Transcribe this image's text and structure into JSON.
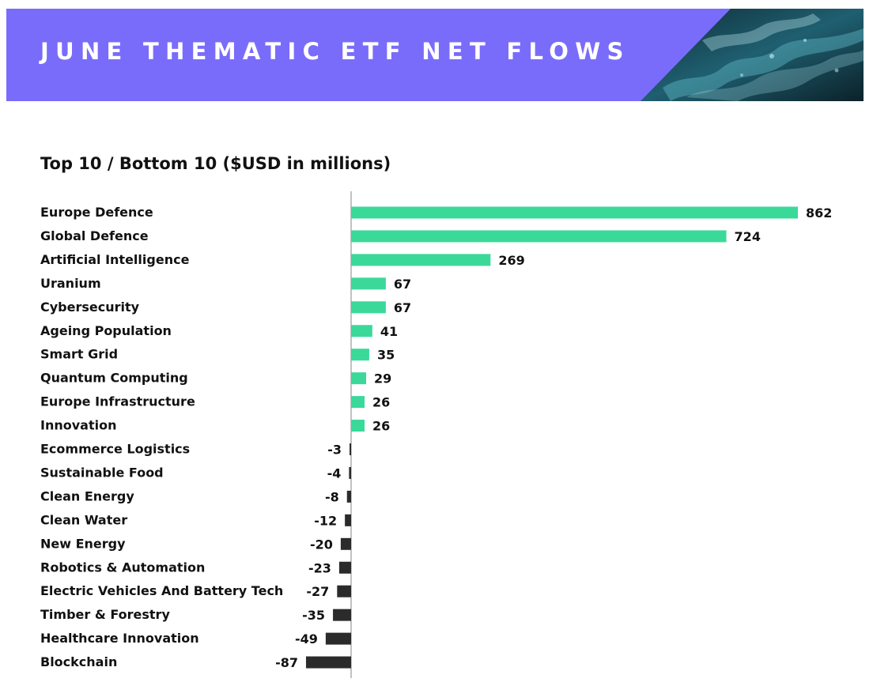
{
  "header": {
    "title": "JUNE THEMATIC ETF NET FLOWS",
    "background_color": "#7a6cfa",
    "image_colors": [
      "#0c2a35",
      "#1d5d6e",
      "#5fb8c8",
      "#c9f1f5"
    ]
  },
  "chart_data": {
    "type": "bar",
    "orientation": "horizontal",
    "title": "Top 10 / Bottom 10 ($USD in millions)",
    "xlabel": "",
    "ylabel": "",
    "grid": false,
    "legend": "none",
    "categories": [
      "Europe Defence",
      "Global Defence",
      "Artificial Intelligence",
      "Uranium",
      "Cybersecurity",
      "Ageing Population",
      "Smart Grid",
      "Quantum Computing",
      "Europe Infrastructure",
      "Innovation",
      "Ecommerce Logistics",
      "Sustainable Food",
      "Clean Energy",
      "Clean Water",
      "New Energy",
      "Robotics & Automation",
      "Electric Vehicles And Battery Tech",
      "Timber & Forestry",
      "Healthcare Innovation",
      "Blockchain"
    ],
    "values": [
      862,
      724,
      269,
      67,
      67,
      41,
      35,
      29,
      26,
      26,
      -3,
      -4,
      -8,
      -12,
      -20,
      -23,
      -27,
      -35,
      -49,
      -87
    ],
    "value_labels": [
      "862",
      "724",
      "269",
      "67",
      "67",
      "41",
      "35",
      "29",
      "26",
      "26",
      "-3",
      "-4",
      "-8",
      "-12",
      "-20",
      "-23",
      "-27",
      "-35",
      "-49",
      "-87"
    ],
    "xlim": [
      -87,
      862
    ],
    "colors": {
      "positive": "#3ad99a",
      "negative": "#2b2b2b",
      "axis": "#999999",
      "text": "#111111"
    }
  }
}
